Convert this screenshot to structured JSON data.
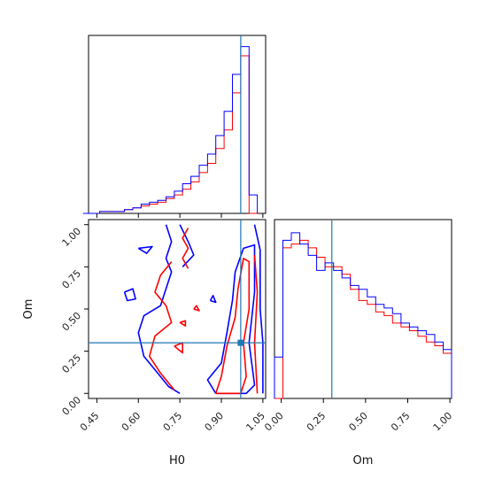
{
  "chart_data": {
    "type": "corner",
    "parameters": [
      "H0",
      "Om"
    ],
    "truth": {
      "H0": 0.97,
      "Om": 0.3
    },
    "colors": {
      "series_a": "#ff0000",
      "series_b": "#0000ff",
      "truth": "#1f77b4"
    },
    "panels": {
      "h0_hist": {
        "xlim": [
          0.42,
          1.06
        ],
        "xticks": [
          0.45,
          0.6,
          0.75,
          0.9,
          1.05
        ],
        "bins": [
          0.4,
          0.43,
          0.46,
          0.49,
          0.52,
          0.55,
          0.58,
          0.61,
          0.64,
          0.67,
          0.7,
          0.73,
          0.76,
          0.79,
          0.82,
          0.85,
          0.88,
          0.91,
          0.94,
          0.97,
          1.0,
          1.03
        ],
        "series": [
          {
            "color_key": "series_a",
            "counts": [
              0,
              0,
              1,
              1,
              1,
              2,
              3,
              4,
              5,
              6,
              8,
              10,
              13,
              17,
              22,
              27,
              35,
              45,
              65,
              85,
              0
            ]
          },
          {
            "color_key": "series_b",
            "counts": [
              0,
              0,
              1,
              1,
              1,
              2,
              3,
              5,
              6,
              7,
              9,
              12,
              16,
              20,
              26,
              32,
              42,
              55,
              75,
              90,
              10
            ]
          }
        ],
        "ymax": 96
      },
      "joint": {
        "xlim": [
          0.42,
          1.06
        ],
        "ylim": [
          -0.03,
          1.03
        ],
        "xticks": [
          0.45,
          0.6,
          0.75,
          0.9,
          1.05
        ],
        "yticks": [
          0.0,
          0.25,
          0.5,
          0.75,
          1.0
        ],
        "contours": [
          {
            "color_key": "series_b",
            "points": [
              [
                0.7,
                1.0
              ],
              [
                0.72,
                0.9
              ],
              [
                0.7,
                0.8
              ],
              [
                0.72,
                0.72
              ],
              [
                0.7,
                0.62
              ],
              [
                0.68,
                0.52
              ],
              [
                0.62,
                0.46
              ],
              [
                0.6,
                0.36
              ],
              [
                0.62,
                0.22
              ],
              [
                0.67,
                0.12
              ],
              [
                0.71,
                0.04
              ],
              [
                0.75,
                0.0
              ]
            ]
          },
          {
            "color_key": "series_b",
            "points": [
              [
                0.75,
                1.0
              ],
              [
                0.78,
                0.9
              ],
              [
                0.8,
                0.82
              ],
              [
                0.76,
                0.75
              ]
            ]
          },
          {
            "color_key": "series_b",
            "points": [
              [
                0.6,
                0.86
              ],
              [
                0.63,
                0.83
              ],
              [
                0.65,
                0.87
              ],
              [
                0.6,
                0.86
              ]
            ]
          },
          {
            "color_key": "series_b",
            "points": [
              [
                0.55,
                0.6
              ],
              [
                0.58,
                0.62
              ],
              [
                0.59,
                0.56
              ],
              [
                0.56,
                0.55
              ],
              [
                0.55,
                0.6
              ]
            ]
          },
          {
            "color_key": "series_b",
            "points": [
              [
                0.86,
                0.55
              ],
              [
                0.87,
                0.58
              ],
              [
                0.88,
                0.54
              ],
              [
                0.86,
                0.55
              ]
            ]
          },
          {
            "color_key": "series_b",
            "points": [
              [
                0.88,
                0.0
              ],
              [
                0.85,
                0.08
              ],
              [
                0.9,
                0.18
              ],
              [
                0.92,
                0.36
              ],
              [
                0.94,
                0.55
              ],
              [
                0.95,
                0.72
              ],
              [
                0.98,
                0.86
              ],
              [
                1.02,
                0.88
              ],
              [
                1.02,
                0.6
              ],
              [
                1.0,
                0.3
              ],
              [
                1.02,
                0.05
              ],
              [
                0.99,
                0.0
              ],
              [
                0.88,
                0.0
              ]
            ]
          },
          {
            "color_key": "series_b",
            "points": [
              [
                1.02,
                1.0
              ],
              [
                1.04,
                0.85
              ],
              [
                1.04,
                0.5
              ],
              [
                1.05,
                0.3
              ],
              [
                1.05,
                0.0
              ]
            ]
          },
          {
            "color_key": "series_a",
            "points": [
              [
                0.72,
                0.78
              ],
              [
                0.68,
                0.7
              ],
              [
                0.66,
                0.6
              ],
              [
                0.7,
                0.52
              ],
              [
                0.72,
                0.42
              ],
              [
                0.66,
                0.34
              ],
              [
                0.64,
                0.22
              ],
              [
                0.68,
                0.12
              ],
              [
                0.73,
                0.02
              ]
            ]
          },
          {
            "color_key": "series_a",
            "points": [
              [
                0.78,
                0.98
              ],
              [
                0.76,
                0.92
              ],
              [
                0.78,
                0.86
              ],
              [
                0.76,
                0.8
              ],
              [
                0.78,
                0.74
              ]
            ]
          },
          {
            "color_key": "series_a",
            "points": [
              [
                0.73,
                0.28
              ],
              [
                0.76,
                0.3
              ],
              [
                0.76,
                0.24
              ],
              [
                0.73,
                0.28
              ]
            ]
          },
          {
            "color_key": "series_a",
            "points": [
              [
                0.75,
                0.42
              ],
              [
                0.77,
                0.43
              ],
              [
                0.77,
                0.4
              ],
              [
                0.75,
                0.42
              ]
            ]
          },
          {
            "color_key": "series_a",
            "points": [
              [
                0.8,
                0.5
              ],
              [
                0.81,
                0.52
              ],
              [
                0.82,
                0.49
              ],
              [
                0.8,
                0.5
              ]
            ]
          },
          {
            "color_key": "series_a",
            "points": [
              [
                0.88,
                0.0
              ],
              [
                0.9,
                0.1
              ],
              [
                0.92,
                0.28
              ],
              [
                0.95,
                0.45
              ],
              [
                0.96,
                0.62
              ],
              [
                0.98,
                0.8
              ],
              [
                1.0,
                0.78
              ],
              [
                1.0,
                0.5
              ],
              [
                0.98,
                0.3
              ],
              [
                0.99,
                0.1
              ],
              [
                0.97,
                0.0
              ],
              [
                0.88,
                0.0
              ]
            ]
          },
          {
            "color_key": "series_a",
            "points": [
              [
                1.02,
                0.82
              ],
              [
                1.03,
                0.6
              ],
              [
                1.02,
                0.3
              ],
              [
                1.03,
                0.0
              ]
            ]
          }
        ],
        "truth_marker": [
          0.97,
          0.3
        ]
      },
      "om_hist": {
        "xlim": [
          -0.04,
          1.01
        ],
        "xticks": [
          0.0,
          0.25,
          0.5,
          0.75,
          1.0
        ],
        "bins": [
          -0.04,
          0.01,
          0.06,
          0.11,
          0.16,
          0.21,
          0.26,
          0.31,
          0.36,
          0.41,
          0.46,
          0.51,
          0.56,
          0.61,
          0.66,
          0.71,
          0.76,
          0.81,
          0.86,
          0.91,
          0.96,
          1.01
        ],
        "series": [
          {
            "color_key": "series_a",
            "counts": [
              0,
              80,
              82,
              84,
              80,
              75,
              70,
              70,
              66,
              58,
              52,
              50,
              46,
              44,
              40,
              38,
              36,
              33,
              30,
              28,
              24
            ]
          },
          {
            "color_key": "series_b",
            "counts": [
              22,
              84,
              88,
              82,
              76,
              68,
              72,
              68,
              64,
              60,
              58,
              54,
              50,
              48,
              45,
              40,
              38,
              36,
              34,
              30,
              26
            ]
          }
        ],
        "ymax": 95
      }
    },
    "xlabel_left": "H0",
    "xlabel_right": "Om",
    "ylabel_joint": "Om",
    "tick_text": {
      "h0": [
        "0.45",
        "0.60",
        "0.75",
        "0.90",
        "1.05"
      ],
      "om": [
        "0.00",
        "0.25",
        "0.50",
        "0.75",
        "1.00"
      ]
    }
  }
}
